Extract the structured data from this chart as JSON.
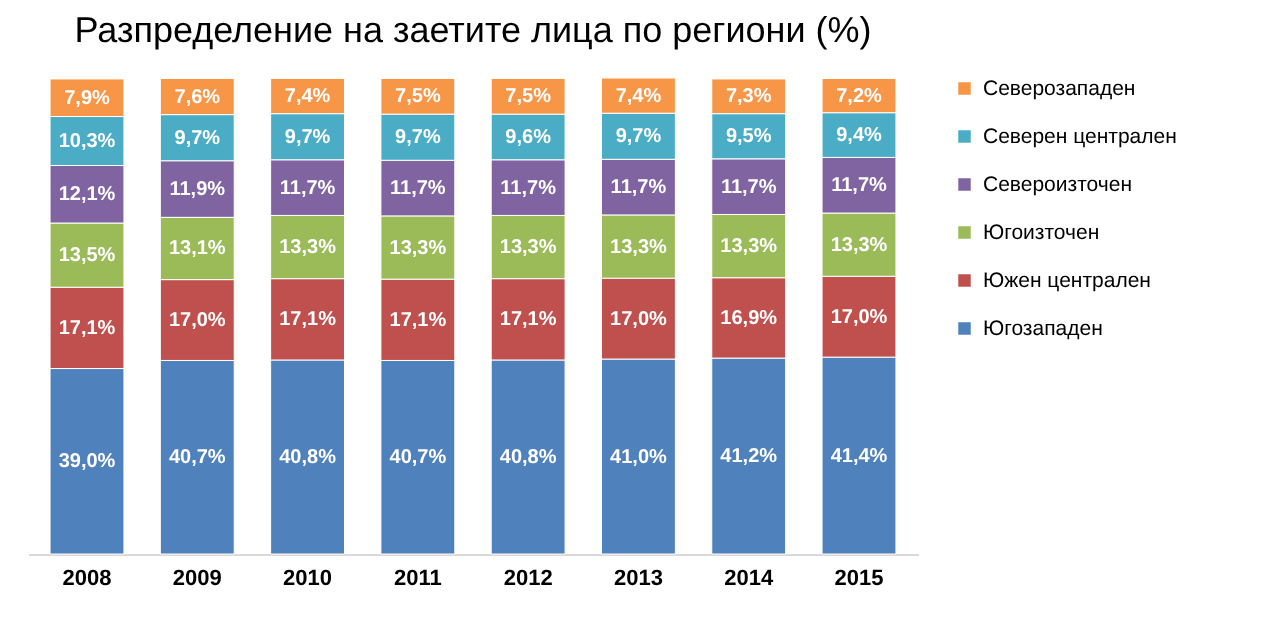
{
  "chart_data": {
    "type": "bar",
    "title": "Разпределение на заетите лица по региони (%)",
    "stacked": true,
    "legend": "right",
    "tick_labels": "x",
    "categories": [
      "2008",
      "2009",
      "2010",
      "2011",
      "2012",
      "2013",
      "2014",
      "2015"
    ],
    "series": [
      {
        "name": "Югозападен",
        "color": "#4f81bd",
        "values": [
          39.0,
          40.7,
          40.8,
          40.7,
          40.8,
          41.0,
          41.2,
          41.4
        ],
        "value_labels": [
          "39,0%",
          "40,7%",
          "40,8%",
          "40,7%",
          "40,8%",
          "41,0%",
          "41,2%",
          "41,4%"
        ]
      },
      {
        "name": "Южен централен",
        "color": "#c0504d",
        "values": [
          17.1,
          17.0,
          17.1,
          17.1,
          17.1,
          17.0,
          16.9,
          17.0
        ],
        "value_labels": [
          "17,1%",
          "17,0%",
          "17,1%",
          "17,1%",
          "17,1%",
          "17,0%",
          "16,9%",
          "17,0%"
        ]
      },
      {
        "name": "Югоизточен",
        "color": "#9bbb59",
        "values": [
          13.5,
          13.1,
          13.3,
          13.3,
          13.3,
          13.3,
          13.3,
          13.3
        ],
        "value_labels": [
          "13,5%",
          "13,1%",
          "13,3%",
          "13,3%",
          "13,3%",
          "13,3%",
          "13,3%",
          "13,3%"
        ]
      },
      {
        "name": "Североизточен",
        "color": "#8064a2",
        "values": [
          12.1,
          11.9,
          11.7,
          11.7,
          11.7,
          11.7,
          11.7,
          11.7
        ],
        "value_labels": [
          "12,1%",
          "11,9%",
          "11,7%",
          "11,7%",
          "11,7%",
          "11,7%",
          "11,7%",
          "11,7%"
        ]
      },
      {
        "name": "Северен централен",
        "color": "#4bacc6",
        "values": [
          10.3,
          9.7,
          9.7,
          9.7,
          9.6,
          9.7,
          9.5,
          9.4
        ],
        "value_labels": [
          "10,3%",
          "9,7%",
          "9,7%",
          "9,7%",
          "9,6%",
          "9,7%",
          "9,5%",
          "9,4%"
        ]
      },
      {
        "name": "Северозападен",
        "color": "#f79646",
        "values": [
          7.9,
          7.6,
          7.4,
          7.5,
          7.5,
          7.4,
          7.3,
          7.2
        ],
        "value_labels": [
          "7,9%",
          "7,6%",
          "7,4%",
          "7,5%",
          "7,5%",
          "7,4%",
          "7,3%",
          "7,2%"
        ]
      }
    ]
  }
}
